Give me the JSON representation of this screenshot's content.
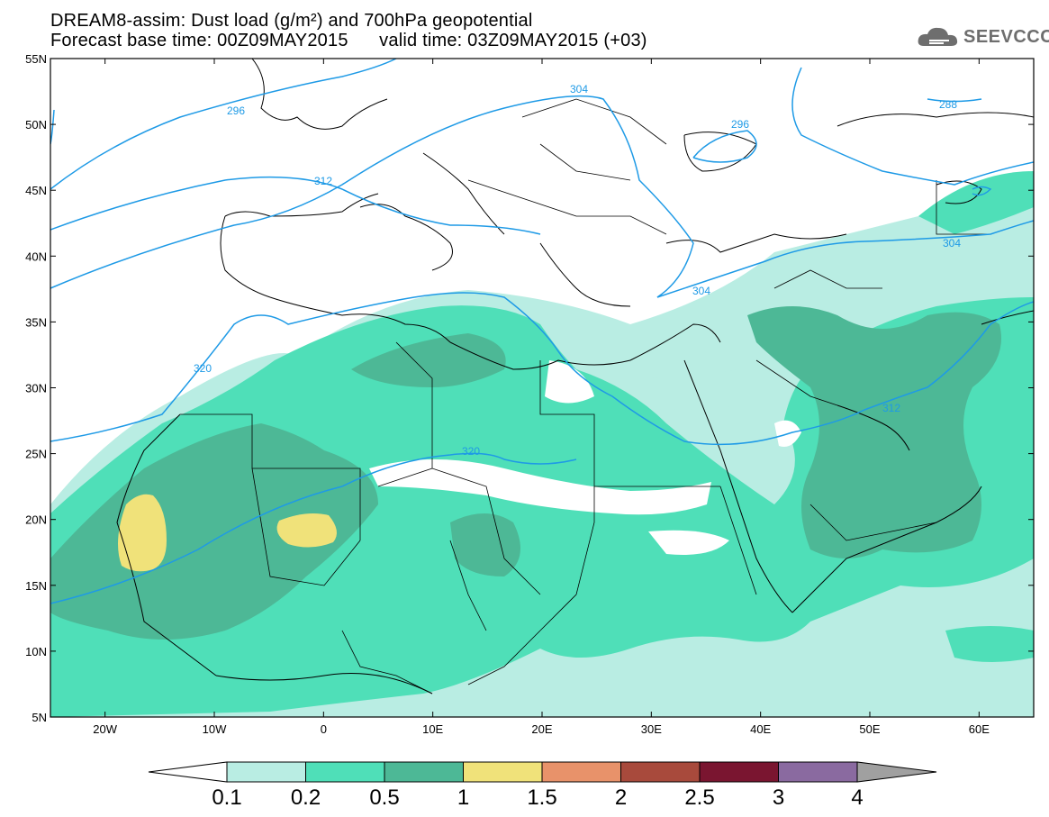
{
  "title": {
    "line1": "DREAM8-assim: Dust load (g/m²) and 700hPa geopotential",
    "line2": "Forecast base time: 00Z09MAY2015      valid time: 03Z09MAY2015 (+03)"
  },
  "logo": {
    "text": "SEEVCCC",
    "icon": "cloud-icon"
  },
  "axes": {
    "lat_labels": [
      "55N",
      "50N",
      "45N",
      "40N",
      "35N",
      "30N",
      "25N",
      "20N",
      "15N",
      "10N",
      "5N"
    ],
    "lon_labels": [
      "20W",
      "10W",
      "0",
      "10E",
      "20E",
      "30E",
      "40E",
      "50E",
      "60E"
    ],
    "lat_range": [
      5,
      55
    ],
    "lon_range": [
      -25,
      65
    ]
  },
  "contour_labels": [
    "296",
    "304",
    "288",
    "312",
    "320",
    "304",
    "312",
    "296"
  ],
  "colorbar": {
    "labels": [
      "0.1",
      "0.2",
      "0.5",
      "1",
      "1.5",
      "2",
      "2.5",
      "3",
      "4"
    ],
    "colors": [
      "#b9ede3",
      "#4fdfb8",
      "#4db896",
      "#f0e27a",
      "#e8926a",
      "#a84a3c",
      "#7a1530",
      "#8a6aa0",
      "#a0a0a0"
    ],
    "under_color": "#ffffff",
    "over_color": "#a0a0a0"
  },
  "colors": {
    "coast": "#000000",
    "contour": "#1e9ae6",
    "low": "#b9ede3",
    "med": "#4fdfb8",
    "high": "#4db896",
    "top": "#f0e27a"
  }
}
